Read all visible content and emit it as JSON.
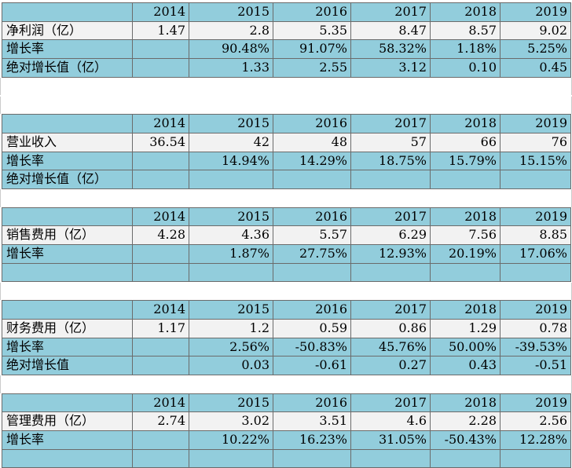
{
  "sections": [
    {
      "header": [
        "2014",
        "2015",
        "2016",
        "2017",
        "2018",
        "2019"
      ],
      "rows": [
        {
          "label": "净利润（亿）",
          "cells": [
            "1.47",
            "2.8",
            "5.35",
            "8.47",
            "8.57",
            "9.02"
          ]
        },
        {
          "label": "增长率",
          "cells": [
            null,
            "90.48%",
            "91.07%",
            "58.32%",
            "1.18%",
            "5.25%"
          ]
        },
        {
          "label": "绝对增长值（亿）",
          "cells": [
            null,
            "1.33",
            "2.55",
            "3.12",
            "0.10",
            "0.45"
          ]
        }
      ]
    },
    {
      "header": [
        "2014",
        "2015",
        "2016",
        "2017",
        "2018",
        "2019"
      ],
      "rows": [
        {
          "label": "营业收入",
          "cells": [
            "36.54",
            "42",
            "48",
            "57",
            "66",
            "76"
          ]
        },
        {
          "label": "增长率",
          "cells": [
            null,
            "14.94%",
            "14.29%",
            "18.75%",
            "15.79%",
            "15.15%"
          ]
        },
        {
          "label": "绝对增长值（亿）",
          "cells": [
            null,
            null,
            null,
            null,
            null,
            null
          ]
        }
      ]
    },
    {
      "header": [
        "2014",
        "2015",
        "2016",
        "2017",
        "2018",
        "2019"
      ],
      "rows": [
        {
          "label": "销售费用（亿）",
          "cells": [
            "4.28",
            "4.36",
            "5.57",
            "6.29",
            "7.56",
            "8.85"
          ]
        },
        {
          "label": "增长率",
          "cells": [
            null,
            "1.87%",
            "27.75%",
            "12.93%",
            "20.19%",
            "17.06%"
          ]
        },
        {
          "label": null,
          "cells": [
            null,
            null,
            null,
            null,
            null,
            null
          ]
        }
      ]
    },
    {
      "header": [
        "2014",
        "2015",
        "2016",
        "2017",
        "2018",
        "2019"
      ],
      "rows": [
        {
          "label": "财务费用（亿）",
          "cells": [
            "1.17",
            "1.2",
            "0.59",
            "0.86",
            "1.29",
            "0.78"
          ]
        },
        {
          "label": "增长率",
          "cells": [
            null,
            "2.56%",
            "-50.83%",
            "45.76%",
            "50.00%",
            "-39.53%"
          ]
        },
        {
          "label": "绝对增长值",
          "cells": [
            null,
            "0.03",
            "-0.61",
            "0.27",
            "0.43",
            "-0.51"
          ]
        }
      ]
    },
    {
      "header": [
        "2014",
        "2015",
        "2016",
        "2017",
        "2018",
        "2019"
      ],
      "rows": [
        {
          "label": "管理费用（亿）",
          "cells": [
            "2.74",
            "3.02",
            "3.51",
            "4.6",
            "2.28",
            "2.56"
          ]
        },
        {
          "label": "增长率",
          "cells": [
            null,
            "10.22%",
            "16.23%",
            "31.05%",
            "-50.43%",
            "12.28%"
          ]
        },
        {
          "label": null,
          "cells": [
            null,
            null,
            null,
            null,
            null,
            null
          ]
        }
      ]
    }
  ]
}
